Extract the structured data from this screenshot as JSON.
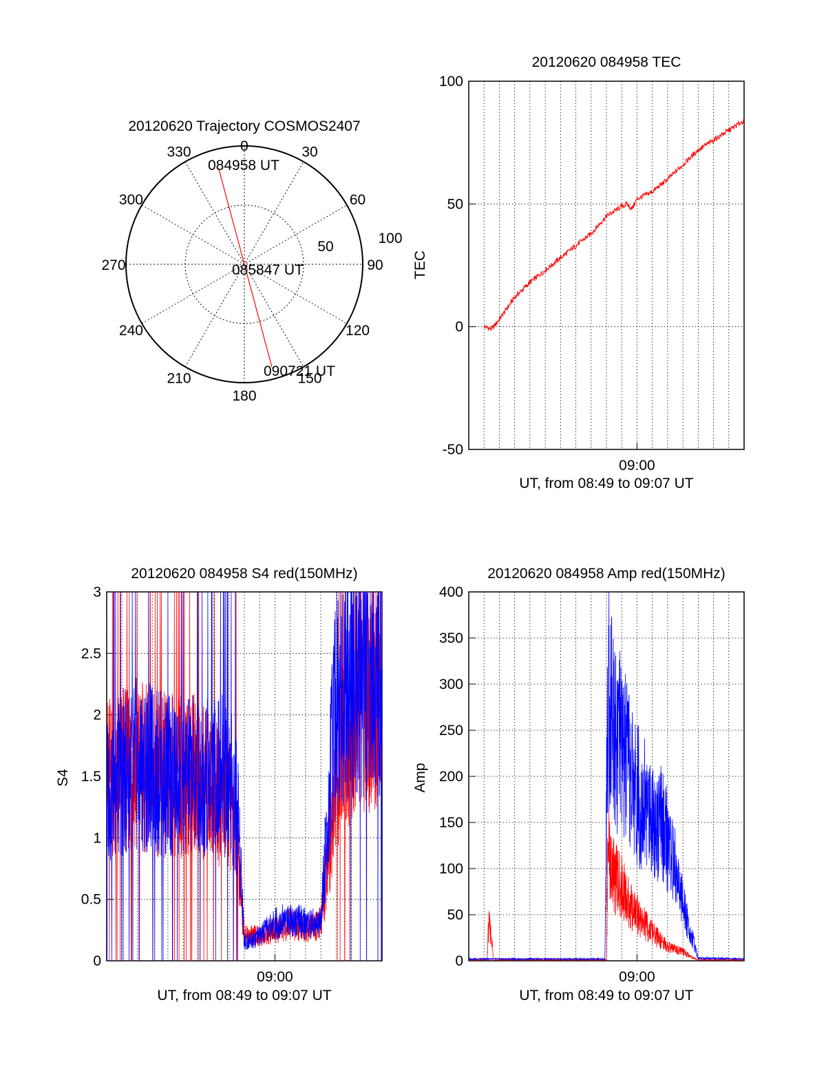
{
  "colors": {
    "red": "#ff0000",
    "blue": "#0000ff",
    "grid": "#000000"
  },
  "chart_data": [
    {
      "id": "trajectory",
      "type": "polar",
      "title": "20120620 Trajectory COSMOS2407",
      "angle_labels": [
        "0",
        "30",
        "60",
        "90",
        "120",
        "150",
        "180",
        "210",
        "240",
        "270",
        "300",
        "330"
      ],
      "radius_labels": [
        "50",
        "100"
      ],
      "radius_max": 100,
      "track_points": [
        {
          "label": "084958 UT",
          "azimuth": 345,
          "radius": 84
        },
        {
          "label": "085847 UT",
          "azimuth": 0,
          "radius": 0
        },
        {
          "label": "090721 UT",
          "azimuth": 165,
          "radius": 90
        }
      ],
      "track_color": "#ff0000"
    },
    {
      "id": "tec",
      "type": "line",
      "title": "20120620 084958 TEC",
      "xlabel": "UT, from 08:49 to 09:07 UT",
      "ylabel": "TEC",
      "xlim": [
        "08:49",
        "09:07"
      ],
      "ylim": [
        -50,
        100
      ],
      "yticks": [
        "-50",
        "0",
        "50",
        "100"
      ],
      "xticks": [
        "09:00"
      ],
      "grid": true,
      "series": [
        {
          "color": "#ff0000",
          "x": [
            "08:50:00",
            "08:50:30",
            "08:51:00",
            "08:52:00",
            "08:53:00",
            "08:54:00",
            "08:55:00",
            "08:56:00",
            "08:57:00",
            "08:58:00",
            "08:59:00",
            "08:59:20",
            "08:59:40",
            "09:00:00",
            "09:01:00",
            "09:02:00",
            "09:03:00",
            "09:04:00",
            "09:05:00",
            "09:06:00",
            "09:07:00"
          ],
          "values": [
            0,
            -1,
            3,
            12,
            18,
            23,
            28,
            33,
            38,
            45,
            49,
            50,
            48,
            52,
            55,
            60,
            66,
            72,
            76,
            80,
            84
          ]
        }
      ]
    },
    {
      "id": "s4",
      "type": "line",
      "title": "20120620 084958 S4 red(150MHz)",
      "xlabel": "UT, from 08:49 to 09:07 UT",
      "ylabel": "S4",
      "xlim": [
        "08:49",
        "09:07"
      ],
      "ylim": [
        0,
        3
      ],
      "yticks": [
        "0",
        "0.5",
        "1",
        "1.5",
        "2",
        "2.5",
        "3"
      ],
      "xticks": [
        "09:00"
      ],
      "grid": true,
      "series": [
        {
          "color": "#ff0000",
          "note_free": true,
          "x_minutes": [
            0,
            2,
            4,
            6,
            8,
            8.6,
            9,
            10,
            11,
            12,
            13,
            14,
            15,
            16,
            17,
            18
          ],
          "values": [
            1.5,
            1.6,
            1.5,
            1.5,
            1.3,
            0.9,
            0.2,
            0.2,
            0.25,
            0.3,
            0.25,
            0.3,
            1.5,
            2.0,
            2.2,
            2.1
          ]
        },
        {
          "color": "#0000ff",
          "x_minutes": [
            0,
            2,
            4,
            6,
            8,
            8.6,
            9,
            10,
            11,
            12,
            13,
            14,
            15,
            16,
            17,
            18
          ],
          "values": [
            1.4,
            1.6,
            1.5,
            1.5,
            1.5,
            1.2,
            0.15,
            0.2,
            0.3,
            0.35,
            0.3,
            0.3,
            2.2,
            2.3,
            2.4,
            2.3
          ]
        }
      ]
    },
    {
      "id": "amp",
      "type": "line",
      "title": "20120620 084958 Amp red(150MHz)",
      "xlabel": "UT, from 08:49 to 09:07 UT",
      "ylabel": "Amp",
      "xlim": [
        "08:49",
        "09:07"
      ],
      "ylim": [
        0,
        400
      ],
      "yticks": [
        "0",
        "50",
        "100",
        "150",
        "200",
        "250",
        "300",
        "350",
        "400"
      ],
      "xticks": [
        "09:00"
      ],
      "grid": true,
      "series": [
        {
          "color": "#ff0000",
          "x_minutes": [
            0,
            1.2,
            1.3,
            1.5,
            1.6,
            9,
            9.1,
            9.5,
            10,
            10.5,
            11,
            12,
            13,
            14,
            14.5,
            15,
            18
          ],
          "values": [
            1,
            1,
            40,
            25,
            1,
            1,
            120,
            90,
            80,
            60,
            50,
            30,
            15,
            10,
            5,
            1,
            1
          ]
        },
        {
          "color": "#0000ff",
          "x_minutes": [
            0,
            8.9,
            9.1,
            9.5,
            10,
            10.5,
            11,
            11.5,
            12,
            12.5,
            13,
            13.5,
            14,
            14.5,
            15,
            18
          ],
          "values": [
            2,
            2,
            300,
            260,
            230,
            200,
            180,
            170,
            160,
            150,
            130,
            100,
            60,
            30,
            3,
            2
          ]
        }
      ]
    }
  ]
}
